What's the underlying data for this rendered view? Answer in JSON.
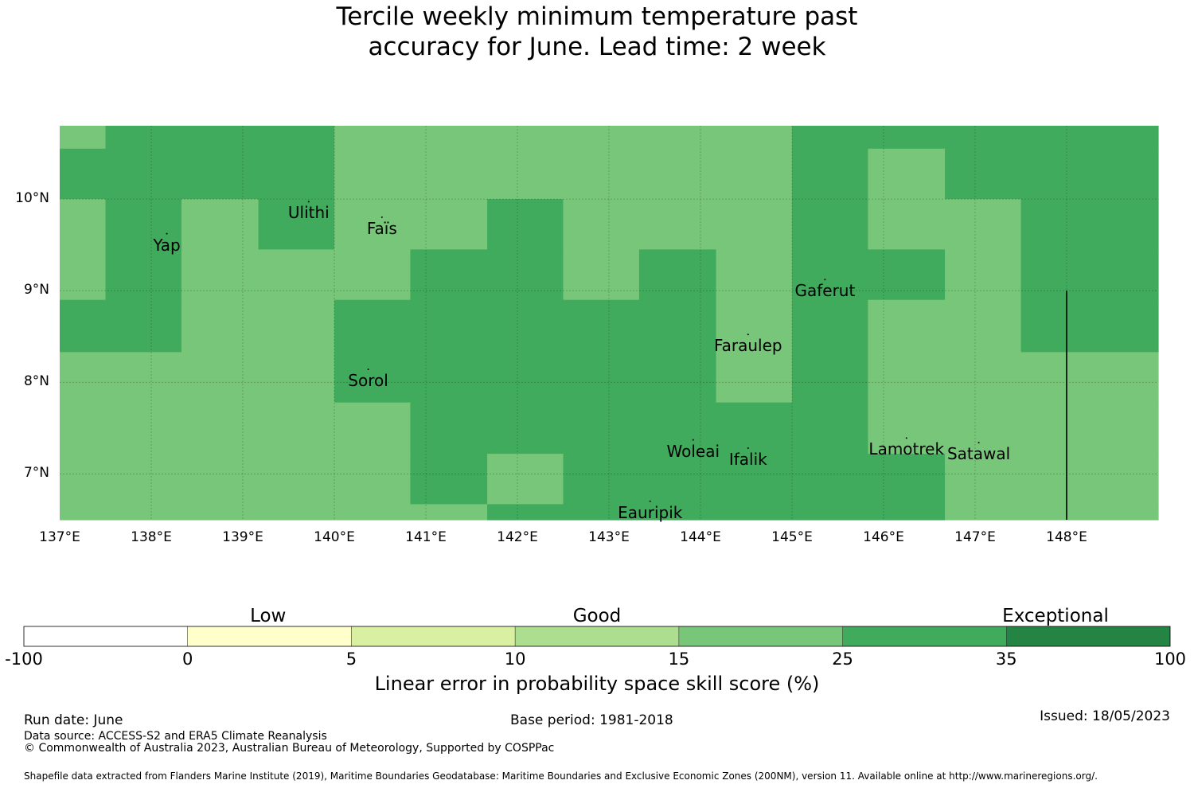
{
  "title_lines": [
    "Tercile weekly minimum temperature past",
    "accuracy for June. Lead time: 2 week"
  ],
  "map": {
    "lon_range": [
      137.0,
      149.0
    ],
    "lat_range": [
      6.5,
      10.8
    ],
    "lon_ticks": [
      "137°E",
      "138°E",
      "139°E",
      "140°E",
      "141°E",
      "142°E",
      "143°E",
      "144°E",
      "145°E",
      "146°E",
      "147°E",
      "148°E"
    ],
    "lat_ticks": [
      "10°N",
      "9°N",
      "8°N",
      "7°N"
    ],
    "colors": {
      "c15_25": "#78c679",
      "c25_35": "#41ab5d",
      "c35_100": "#238443"
    },
    "grid_cells_note_level": "cells colored by skill band: 1 = 15-25, 2 = 25-35",
    "grid": {
      "lon_edges": [
        137.0,
        137.5,
        138.33,
        139.17,
        140.0,
        140.83,
        141.67,
        142.5,
        143.33,
        144.17,
        145.0,
        145.83,
        146.67,
        147.5,
        148.33,
        149.0
      ],
      "lat_edges": [
        10.8,
        10.55,
        10.0,
        9.45,
        8.9,
        8.33,
        7.78,
        7.22,
        6.67,
        6.5
      ],
      "levels": [
        [
          1,
          2,
          2,
          2,
          1,
          1,
          1,
          1,
          1,
          1,
          2,
          2,
          2,
          2,
          2
        ],
        [
          2,
          2,
          2,
          2,
          1,
          1,
          1,
          1,
          1,
          1,
          2,
          1,
          2,
          2,
          2
        ],
        [
          1,
          2,
          1,
          2,
          1,
          1,
          2,
          1,
          1,
          1,
          2,
          1,
          1,
          2,
          2
        ],
        [
          1,
          2,
          1,
          1,
          1,
          2,
          2,
          1,
          2,
          1,
          2,
          2,
          1,
          2,
          2
        ],
        [
          2,
          2,
          1,
          1,
          2,
          2,
          2,
          2,
          2,
          1,
          2,
          1,
          1,
          2,
          2
        ],
        [
          1,
          1,
          1,
          1,
          2,
          2,
          2,
          2,
          2,
          1,
          2,
          1,
          1,
          1,
          1
        ],
        [
          1,
          1,
          1,
          1,
          1,
          2,
          2,
          2,
          2,
          2,
          2,
          1,
          1,
          1,
          1
        ],
        [
          1,
          1,
          1,
          1,
          1,
          2,
          1,
          2,
          2,
          2,
          2,
          2,
          1,
          1,
          1
        ],
        [
          1,
          1,
          1,
          1,
          1,
          1,
          2,
          2,
          2,
          2,
          2,
          2,
          1,
          1,
          1
        ]
      ]
    },
    "places": [
      {
        "name": "Yap",
        "lon": 138.17,
        "lat": 9.5
      },
      {
        "name": "Ulithi",
        "lon": 139.72,
        "lat": 9.85
      },
      {
        "name": "Faïs",
        "lon": 140.52,
        "lat": 9.68
      },
      {
        "name": "Gaferut",
        "lon": 145.36,
        "lat": 9.0
      },
      {
        "name": "Faraulep",
        "lon": 144.52,
        "lat": 8.4
      },
      {
        "name": "Sorol",
        "lon": 140.37,
        "lat": 8.02
      },
      {
        "name": "Woleai",
        "lon": 143.92,
        "lat": 7.25
      },
      {
        "name": "Ifalik",
        "lon": 144.52,
        "lat": 7.16
      },
      {
        "name": "Lamotrek",
        "lon": 146.25,
        "lat": 7.27
      },
      {
        "name": "Satawal",
        "lon": 147.04,
        "lat": 7.22
      },
      {
        "name": "Eauripik",
        "lon": 143.45,
        "lat": 6.58
      }
    ]
  },
  "colorbar": {
    "categories": [
      {
        "label": "Low",
        "pos": 0.213
      },
      {
        "label": "Good",
        "pos": 0.5
      },
      {
        "label": "Exceptional",
        "pos": 0.9
      }
    ],
    "bins": [
      {
        "from": "-100",
        "to": "0",
        "color": "#ffffff"
      },
      {
        "from": "0",
        "to": "5",
        "color": "#ffffcc"
      },
      {
        "from": "5",
        "to": "10",
        "color": "#d9f0a3"
      },
      {
        "from": "10",
        "to": "15",
        "color": "#addd8e"
      },
      {
        "from": "15",
        "to": "25",
        "color": "#78c679"
      },
      {
        "from": "25",
        "to": "35",
        "color": "#41ab5d"
      },
      {
        "from": "35",
        "to": "100",
        "color": "#238443"
      }
    ],
    "tick_labels": [
      "-100",
      "0",
      "5",
      "10",
      "15",
      "25",
      "35",
      "100"
    ],
    "label": "Linear error in probability space skill score (%)"
  },
  "footer": {
    "run_date": "Run date: June",
    "base_period": "Base period: 1981-2018",
    "issued": "Issued: 18/05/2023",
    "data_source": "Data source: ACCESS-S2 and ERA5 Climate Reanalysis",
    "copyright": "© Commonwealth of Australia 2023, Australian Bureau of Meteorology, Supported by COSPPac",
    "shapefile": "Shapefile data extracted from Flanders Marine Institute (2019), Maritime Boundaries Geodatabase: Maritime Boundaries and Exclusive Economic Zones (200NM), version 11. Available online at http://www.marineregions.org/."
  }
}
